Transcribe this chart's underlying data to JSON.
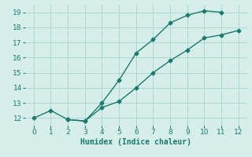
{
  "line1_x": [
    0,
    1,
    2,
    3,
    4,
    5,
    6,
    7,
    8,
    9,
    10,
    11
  ],
  "line1_y": [
    12.0,
    12.5,
    11.9,
    11.8,
    13.0,
    14.5,
    16.3,
    17.2,
    18.3,
    18.8,
    19.1,
    19.0
  ],
  "line2_x": [
    2,
    3,
    4,
    5,
    6,
    7,
    8,
    9,
    10,
    11,
    12
  ],
  "line2_y": [
    11.9,
    11.8,
    12.7,
    13.1,
    14.0,
    15.0,
    15.8,
    16.5,
    17.3,
    17.5,
    17.8
  ],
  "line_color": "#1a7a6e",
  "bg_color": "#d6eeea",
  "grid_color": "#b0d8d0",
  "xlabel": "Humidex (Indice chaleur)",
  "xlim": [
    -0.5,
    12.5
  ],
  "ylim": [
    11.5,
    19.5
  ],
  "xticks": [
    0,
    1,
    2,
    3,
    4,
    5,
    6,
    7,
    8,
    9,
    10,
    11,
    12
  ],
  "yticks": [
    12,
    13,
    14,
    15,
    16,
    17,
    18,
    19
  ],
  "marker": "D",
  "markersize": 2.5,
  "linewidth": 1.0,
  "xlabel_fontsize": 7,
  "tick_fontsize": 6.5
}
